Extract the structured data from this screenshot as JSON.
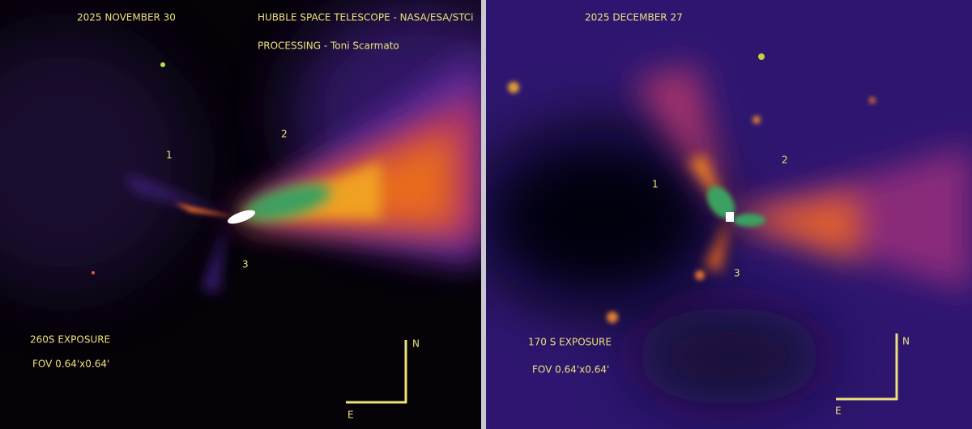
{
  "panels": [
    {
      "date": "2025 NOVEMBER 30",
      "credits": [
        "HUBBLE SPACE TELESCOPE - NASA/ESA/STCi",
        "PROCESSING - Toni Scarmato"
      ],
      "labels": [
        "1",
        "2",
        "3"
      ],
      "exposure": "260S EXPOSURE",
      "fov": "FOV 0.64'x0.64'",
      "compass": {
        "north": "N",
        "east": "E"
      }
    },
    {
      "date": "2025 DECEMBER 27",
      "labels": [
        "1",
        "2",
        "3"
      ],
      "exposure": "170 S EXPOSURE",
      "fov": "FOV 0.64'x0.64'",
      "compass": {
        "north": "N",
        "east": "E"
      }
    }
  ]
}
